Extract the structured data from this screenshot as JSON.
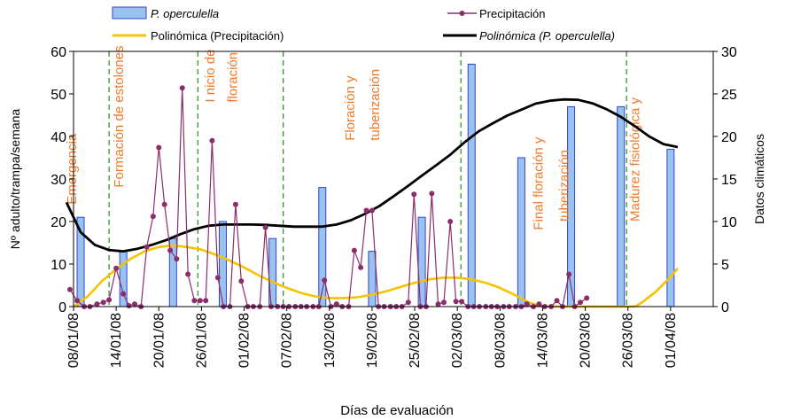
{
  "chart_data": {
    "type": "bar+line",
    "xlabel": "Días de evaluación",
    "ylabel": "Nº adulto/trampa/semana",
    "y2label": "Datos climáticos",
    "ylim": [
      0,
      60
    ],
    "y2lim": [
      0,
      30
    ],
    "yticks": [
      "0",
      "10",
      "20",
      "30",
      "40",
      "50",
      "60"
    ],
    "y2ticks": [
      "0",
      "5",
      "10",
      "15",
      "20",
      "25",
      "30"
    ],
    "xlim": [
      0,
      90
    ],
    "xticks": [
      {
        "day": 0,
        "label": "08/01/08"
      },
      {
        "day": 6,
        "label": "14/01/08"
      },
      {
        "day": 12,
        "label": "20/01/08"
      },
      {
        "day": 18,
        "label": "26/01/08"
      },
      {
        "day": 24,
        "label": "01/02/08"
      },
      {
        "day": 30,
        "label": "07/02/08"
      },
      {
        "day": 36,
        "label": "13/02/08"
      },
      {
        "day": 42,
        "label": "19/02/08"
      },
      {
        "day": 48,
        "label": "25/02/08"
      },
      {
        "day": 54,
        "label": "02/03/08"
      },
      {
        "day": 60,
        "label": "08/03/08"
      },
      {
        "day": 66,
        "label": "14/03/08"
      },
      {
        "day": 72,
        "label": "20/03/08"
      },
      {
        "day": 78,
        "label": "26/03/08"
      },
      {
        "day": 84,
        "label": "01/04/08"
      }
    ],
    "legend": {
      "placement": "top",
      "bars": "P. operculella",
      "precip": "Precipitación",
      "poly_precip": "Polinómica (Precipitación)",
      "poly_pop": "Polinómica (P. operculella)"
    },
    "bars": [
      {
        "day": 1,
        "value": 21
      },
      {
        "day": 7,
        "value": 13
      },
      {
        "day": 14,
        "value": 16
      },
      {
        "day": 21,
        "value": 20
      },
      {
        "day": 28,
        "value": 16
      },
      {
        "day": 35,
        "value": 28
      },
      {
        "day": 42,
        "value": 13
      },
      {
        "day": 49,
        "value": 21
      },
      {
        "day": 56,
        "value": 57
      },
      {
        "day": 63,
        "value": 35
      },
      {
        "day": 70,
        "value": 47
      },
      {
        "day": 77,
        "value": 47
      },
      {
        "day": 84,
        "value": 37
      }
    ],
    "precipitation": [
      {
        "day": -0.5,
        "value": 2.0
      },
      {
        "day": 0.5,
        "value": 0.7
      },
      {
        "day": 1.5,
        "value": 0.0
      },
      {
        "day": 2.3,
        "value": 0.0
      },
      {
        "day": 3.3,
        "value": 0.3
      },
      {
        "day": 4.2,
        "value": 0.5
      },
      {
        "day": 5,
        "value": 0.8
      },
      {
        "day": 6,
        "value": 4.5
      },
      {
        "day": 7,
        "value": 1.5
      },
      {
        "day": 7.8,
        "value": 0.1
      },
      {
        "day": 8.6,
        "value": 0.3
      },
      {
        "day": 9.5,
        "value": 0.0
      },
      {
        "day": 10.3,
        "value": 7.0
      },
      {
        "day": 11.2,
        "value": 10.6
      },
      {
        "day": 12,
        "value": 18.7
      },
      {
        "day": 12.8,
        "value": 12.0
      },
      {
        "day": 13.6,
        "value": 6.6
      },
      {
        "day": 14.5,
        "value": 5.6
      },
      {
        "day": 15.3,
        "value": 25.7
      },
      {
        "day": 16.1,
        "value": 3.8
      },
      {
        "day": 17,
        "value": 0.7
      },
      {
        "day": 17.8,
        "value": 0.7
      },
      {
        "day": 18.6,
        "value": 0.7
      },
      {
        "day": 19.5,
        "value": 19.5
      },
      {
        "day": 20.3,
        "value": 3.4
      },
      {
        "day": 21.1,
        "value": 0.0
      },
      {
        "day": 22,
        "value": 0.0
      },
      {
        "day": 22.8,
        "value": 12.0
      },
      {
        "day": 23.6,
        "value": 3.0
      },
      {
        "day": 24.5,
        "value": 0.0
      },
      {
        "day": 25.3,
        "value": 0.0
      },
      {
        "day": 26.2,
        "value": 0.0
      },
      {
        "day": 27,
        "value": 9.3
      },
      {
        "day": 27.8,
        "value": 0.0
      },
      {
        "day": 28.7,
        "value": 0.0
      },
      {
        "day": 29.5,
        "value": 0.0
      },
      {
        "day": 30.3,
        "value": 0.0
      },
      {
        "day": 31.2,
        "value": 0.0
      },
      {
        "day": 32,
        "value": 0.0
      },
      {
        "day": 32.8,
        "value": 0.0
      },
      {
        "day": 33.7,
        "value": 0.0
      },
      {
        "day": 34.5,
        "value": 0.0
      },
      {
        "day": 35.3,
        "value": 3.1
      },
      {
        "day": 36.2,
        "value": 0.0
      },
      {
        "day": 37,
        "value": 0.3
      },
      {
        "day": 37.8,
        "value": 0.0
      },
      {
        "day": 38.7,
        "value": 0.0
      },
      {
        "day": 39.5,
        "value": 6.6
      },
      {
        "day": 40.4,
        "value": 4.6
      },
      {
        "day": 41.2,
        "value": 11.3
      },
      {
        "day": 42,
        "value": 11.3
      },
      {
        "day": 42.9,
        "value": 0.0
      },
      {
        "day": 43.7,
        "value": 0.0
      },
      {
        "day": 44.6,
        "value": 0.0
      },
      {
        "day": 45.4,
        "value": 0.0
      },
      {
        "day": 46.2,
        "value": 0.0
      },
      {
        "day": 47.1,
        "value": 0.5
      },
      {
        "day": 47.9,
        "value": 13.2
      },
      {
        "day": 48.8,
        "value": 0.0
      },
      {
        "day": 49.6,
        "value": 0.0
      },
      {
        "day": 50.4,
        "value": 13.3
      },
      {
        "day": 51.3,
        "value": 0.3
      },
      {
        "day": 52.1,
        "value": 0.5
      },
      {
        "day": 53,
        "value": 10.0
      },
      {
        "day": 53.8,
        "value": 0.6
      },
      {
        "day": 54.6,
        "value": 0.6
      },
      {
        "day": 55.5,
        "value": 0.0
      },
      {
        "day": 56.3,
        "value": 0.0
      },
      {
        "day": 57.1,
        "value": 0.0
      },
      {
        "day": 58,
        "value": 0.0
      },
      {
        "day": 58.8,
        "value": 0.0
      },
      {
        "day": 59.6,
        "value": 0.0
      },
      {
        "day": 60.5,
        "value": 0.0
      },
      {
        "day": 61.3,
        "value": 0.0
      },
      {
        "day": 62.2,
        "value": 0.0
      },
      {
        "day": 63,
        "value": 0.0
      },
      {
        "day": 63.8,
        "value": 0.3
      },
      {
        "day": 64.7,
        "value": 0.0
      },
      {
        "day": 65.5,
        "value": 0.3
      },
      {
        "day": 66.3,
        "value": 0.0
      },
      {
        "day": 67.2,
        "value": 0.0
      },
      {
        "day": 68,
        "value": 0.7
      },
      {
        "day": 68.8,
        "value": 0.0
      },
      {
        "day": 69.7,
        "value": 3.8
      },
      {
        "day": 70.5,
        "value": 0.0
      },
      {
        "day": 71.3,
        "value": 0.5
      },
      {
        "day": 72.2,
        "value": 1.0
      }
    ],
    "poly_precip": [
      [
        0,
        0.0
      ],
      [
        2,
        1.2
      ],
      [
        4,
        3.0
      ],
      [
        6,
        4.4
      ],
      [
        8,
        5.6
      ],
      [
        10,
        6.5
      ],
      [
        12,
        7.0
      ],
      [
        14,
        7.2
      ],
      [
        16,
        7.0
      ],
      [
        18,
        6.7
      ],
      [
        20,
        6.1
      ],
      [
        22,
        5.4
      ],
      [
        24,
        4.6
      ],
      [
        26,
        3.7
      ],
      [
        28,
        2.9
      ],
      [
        30,
        2.2
      ],
      [
        32,
        1.6
      ],
      [
        34,
        1.2
      ],
      [
        36,
        1.0
      ],
      [
        38,
        1.0
      ],
      [
        40,
        1.1
      ],
      [
        42,
        1.4
      ],
      [
        44,
        1.8
      ],
      [
        46,
        2.3
      ],
      [
        48,
        2.8
      ],
      [
        50,
        3.2
      ],
      [
        52,
        3.4
      ],
      [
        54,
        3.4
      ],
      [
        56,
        3.2
      ],
      [
        58,
        2.8
      ],
      [
        60,
        2.2
      ],
      [
        62,
        1.4
      ],
      [
        64,
        0.5
      ],
      [
        66,
        0.0
      ],
      [
        68,
        0.0
      ],
      [
        72,
        0.0
      ],
      [
        76,
        0.0
      ],
      [
        79,
        0.0
      ],
      [
        80,
        0.5
      ],
      [
        82,
        1.8
      ],
      [
        84,
        3.5
      ],
      [
        85,
        4.5
      ]
    ],
    "poly_pop": [
      [
        -1,
        24.5
      ],
      [
        1,
        17.5
      ],
      [
        3,
        14.5
      ],
      [
        5,
        13.3
      ],
      [
        7,
        13.0
      ],
      [
        9,
        13.6
      ],
      [
        11,
        14.5
      ],
      [
        13,
        15.6
      ],
      [
        15,
        17.0
      ],
      [
        17,
        18.2
      ],
      [
        19,
        19.0
      ],
      [
        21,
        19.3
      ],
      [
        23,
        19.3
      ],
      [
        25,
        19.3
      ],
      [
        27,
        19.2
      ],
      [
        29,
        19.0
      ],
      [
        31,
        18.8
      ],
      [
        33,
        18.8
      ],
      [
        35,
        18.8
      ],
      [
        37,
        19.3
      ],
      [
        39,
        20.3
      ],
      [
        41,
        21.8
      ],
      [
        43,
        23.6
      ],
      [
        45,
        25.9
      ],
      [
        47,
        28.3
      ],
      [
        49,
        30.8
      ],
      [
        51,
        33.2
      ],
      [
        53,
        35.7
      ],
      [
        55,
        38.6
      ],
      [
        57,
        41.2
      ],
      [
        59,
        43.1
      ],
      [
        61,
        44.9
      ],
      [
        63,
        46.3
      ],
      [
        65,
        47.7
      ],
      [
        67,
        48.4
      ],
      [
        69,
        48.7
      ],
      [
        71,
        48.6
      ],
      [
        73,
        47.8
      ],
      [
        75,
        46.4
      ],
      [
        77,
        44.6
      ],
      [
        79,
        42.4
      ],
      [
        81,
        40.0
      ],
      [
        83,
        38.2
      ],
      [
        85,
        37.5
      ]
    ],
    "stage_lines": [
      5,
      17.5,
      29.5,
      54.5,
      77.8
    ],
    "annotations": [
      {
        "text": "Emergencia",
        "day": 0.4,
        "value": 24
      },
      {
        "text": "Formación de estolones",
        "day": 7,
        "value": 28
      },
      {
        "text": "I nicio de",
        "day": 19.8,
        "value": 48
      },
      {
        "text": "floración",
        "day": 23,
        "value": 48
      },
      {
        "text": "Floración y",
        "day": 39.5,
        "value": 39
      },
      {
        "text": "tuberización",
        "day": 43,
        "value": 39
      },
      {
        "text": "Final floración y",
        "day": 66,
        "value": 18
      },
      {
        "text": "tuberización",
        "day": 69.6,
        "value": 20
      },
      {
        "text": "Madurez fisiológica y",
        "day": 79.6,
        "value": 20
      }
    ],
    "colors": {
      "bar_fill": "#99c2f0",
      "bar_stroke": "#3344cc",
      "precip": "#8b2d6b",
      "poly_precip": "#f5c400",
      "poly_pop": "#000000",
      "stage_line": "#2e9a2e",
      "annotation": "#f07a28"
    }
  }
}
